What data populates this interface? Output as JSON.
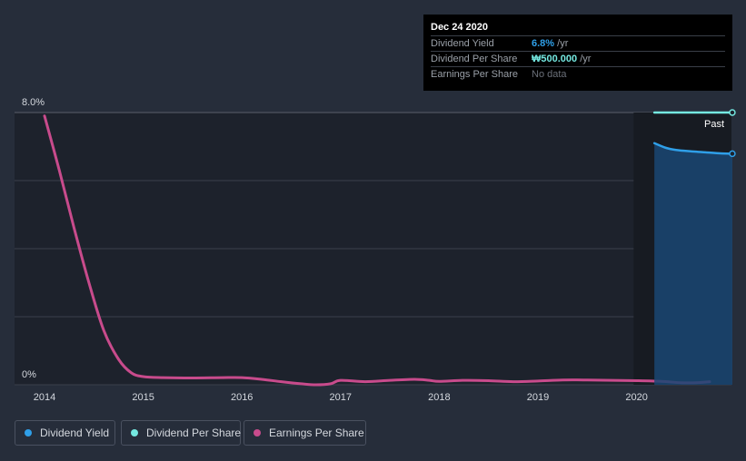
{
  "tooltip": {
    "date": "Dec 24 2020",
    "rows": [
      {
        "label": "Dividend Yield",
        "value": "6.8%",
        "unit": " /yr",
        "color": "#2f9fe8"
      },
      {
        "label": "Dividend Per Share",
        "value": "₩500.000",
        "unit": " /yr",
        "color": "#74e8e0"
      },
      {
        "label": "Earnings Per Share",
        "value": "No data",
        "unit": "",
        "color": "#6b7079"
      }
    ]
  },
  "past_label": "Past",
  "legend": [
    {
      "label": "Dividend Yield",
      "color": "#2f9fe8"
    },
    {
      "label": "Dividend Per Share",
      "color": "#74e8e0"
    },
    {
      "label": "Earnings Per Share",
      "color": "#c84b8c"
    }
  ],
  "chart_data": {
    "type": "line",
    "y_tick_labels": [
      "8.0%",
      "0%"
    ],
    "ylim": [
      0,
      8.0
    ],
    "xlim": [
      2013.99,
      2020.97
    ],
    "x_ticks": [
      2014,
      2015,
      2016,
      2017,
      2018,
      2019,
      2020
    ],
    "x_tick_labels": [
      "2014",
      "2015",
      "2016",
      "2017",
      "2018",
      "2019",
      "2020"
    ],
    "grid": true,
    "shaded_region_start": 2019.97,
    "series": [
      {
        "name": "Earnings Per Share",
        "color": "#c84b8c",
        "x": [
          2014.0,
          2014.15,
          2014.3,
          2014.45,
          2014.6,
          2014.75,
          2014.88,
          2015.0,
          2015.2,
          2015.5,
          2015.8,
          2016.0,
          2016.2,
          2016.4,
          2016.6,
          2016.75,
          2016.9,
          2017.0,
          2017.25,
          2017.5,
          2017.75,
          2017.9,
          2018.0,
          2018.25,
          2018.5,
          2018.75,
          2019.0,
          2019.25,
          2019.5,
          2019.75,
          2020.0,
          2020.25,
          2020.45,
          2020.6,
          2020.74
        ],
        "y": [
          7.9,
          6.3,
          4.6,
          3.0,
          1.6,
          0.75,
          0.35,
          0.24,
          0.21,
          0.2,
          0.21,
          0.21,
          0.16,
          0.09,
          0.03,
          0.0,
          0.03,
          0.13,
          0.09,
          0.13,
          0.16,
          0.13,
          0.1,
          0.13,
          0.12,
          0.09,
          0.11,
          0.14,
          0.14,
          0.13,
          0.12,
          0.1,
          0.06,
          0.06,
          0.09
        ]
      },
      {
        "name": "Dividend Yield",
        "color": "#2f9fe8",
        "x": [
          2020.18,
          2020.3,
          2020.4,
          2020.55,
          2020.7,
          2020.85,
          2020.97
        ],
        "y": [
          7.1,
          6.96,
          6.9,
          6.86,
          6.83,
          6.8,
          6.79
        ]
      },
      {
        "name": "Dividend Per Share",
        "color": "#74e8e0",
        "x": [
          2020.18,
          2020.97
        ],
        "y": [
          8.0,
          8.0
        ]
      }
    ]
  }
}
